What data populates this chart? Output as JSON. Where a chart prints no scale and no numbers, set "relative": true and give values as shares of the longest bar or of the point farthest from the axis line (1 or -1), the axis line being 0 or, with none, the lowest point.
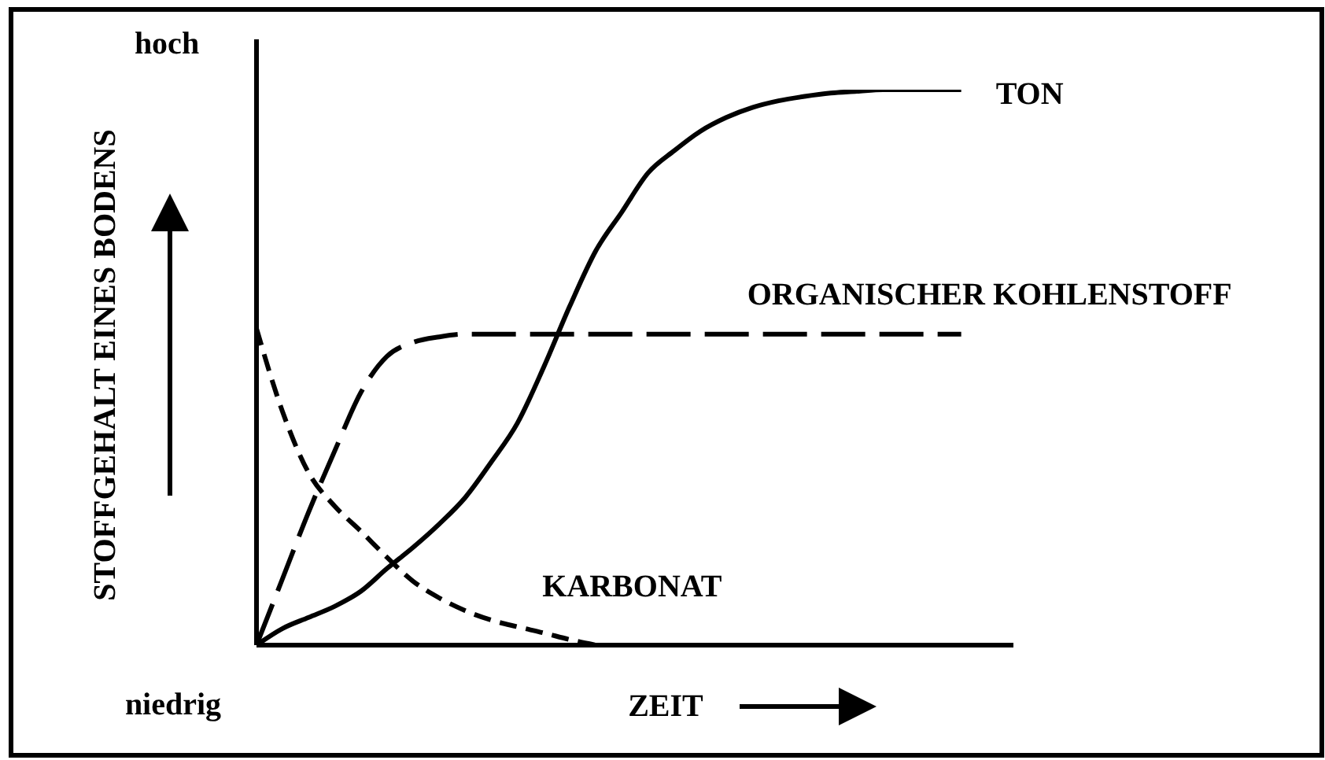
{
  "chart_data": {
    "type": "line",
    "xlabel": "ZEIT",
    "ylabel": "STOFFGEHALT EINES BODENS",
    "annotations": [
      "hoch",
      "niedrig"
    ],
    "relative": true,
    "categories": [
      null,
      null,
      null,
      null,
      null,
      null,
      null,
      null,
      null,
      null,
      null,
      null,
      null,
      null,
      null,
      null,
      null,
      null,
      null,
      null,
      null,
      null,
      null,
      null,
      null,
      null,
      null,
      null,
      null,
      null
    ],
    "series": [
      {
        "name": "TON",
        "color": "#000000",
        "line_style": "solid",
        "values": [
          0,
          0.03,
          0.05,
          0.07,
          0.097,
          0.138,
          0.176,
          0.218,
          0.266,
          0.33,
          0.4,
          0.5,
          0.61,
          0.71,
          0.78,
          0.85,
          0.89,
          0.925,
          0.95,
          0.968,
          0.98,
          0.988,
          0.994,
          0.997,
          1,
          1,
          1,
          1,
          null,
          null
        ]
      },
      {
        "name": "ORGANISCHER KOHLENSTOFF",
        "color": "#000000",
        "line_style": "dashed",
        "values": [
          0,
          0.12,
          0.24,
          0.35,
          0.455,
          0.52,
          0.545,
          0.555,
          0.56,
          0.56,
          0.56,
          0.56,
          0.56,
          0.56,
          0.56,
          0.56,
          0.56,
          0.56,
          0.56,
          0.56,
          0.56,
          0.56,
          0.56,
          0.56,
          0.56,
          0.56,
          0.56,
          0.56,
          null,
          null
        ]
      },
      {
        "name": "KARBONAT",
        "color": "#000000",
        "line_style": "dashed",
        "values": [
          0.57,
          0.42,
          0.31,
          0.25,
          0.205,
          0.158,
          0.115,
          0.085,
          0.062,
          0.045,
          0.033,
          0.022,
          0.01,
          0,
          null,
          null,
          null,
          null,
          null,
          null,
          null,
          null,
          null,
          null,
          null,
          null,
          null,
          null,
          null,
          null
        ]
      }
    ]
  }
}
